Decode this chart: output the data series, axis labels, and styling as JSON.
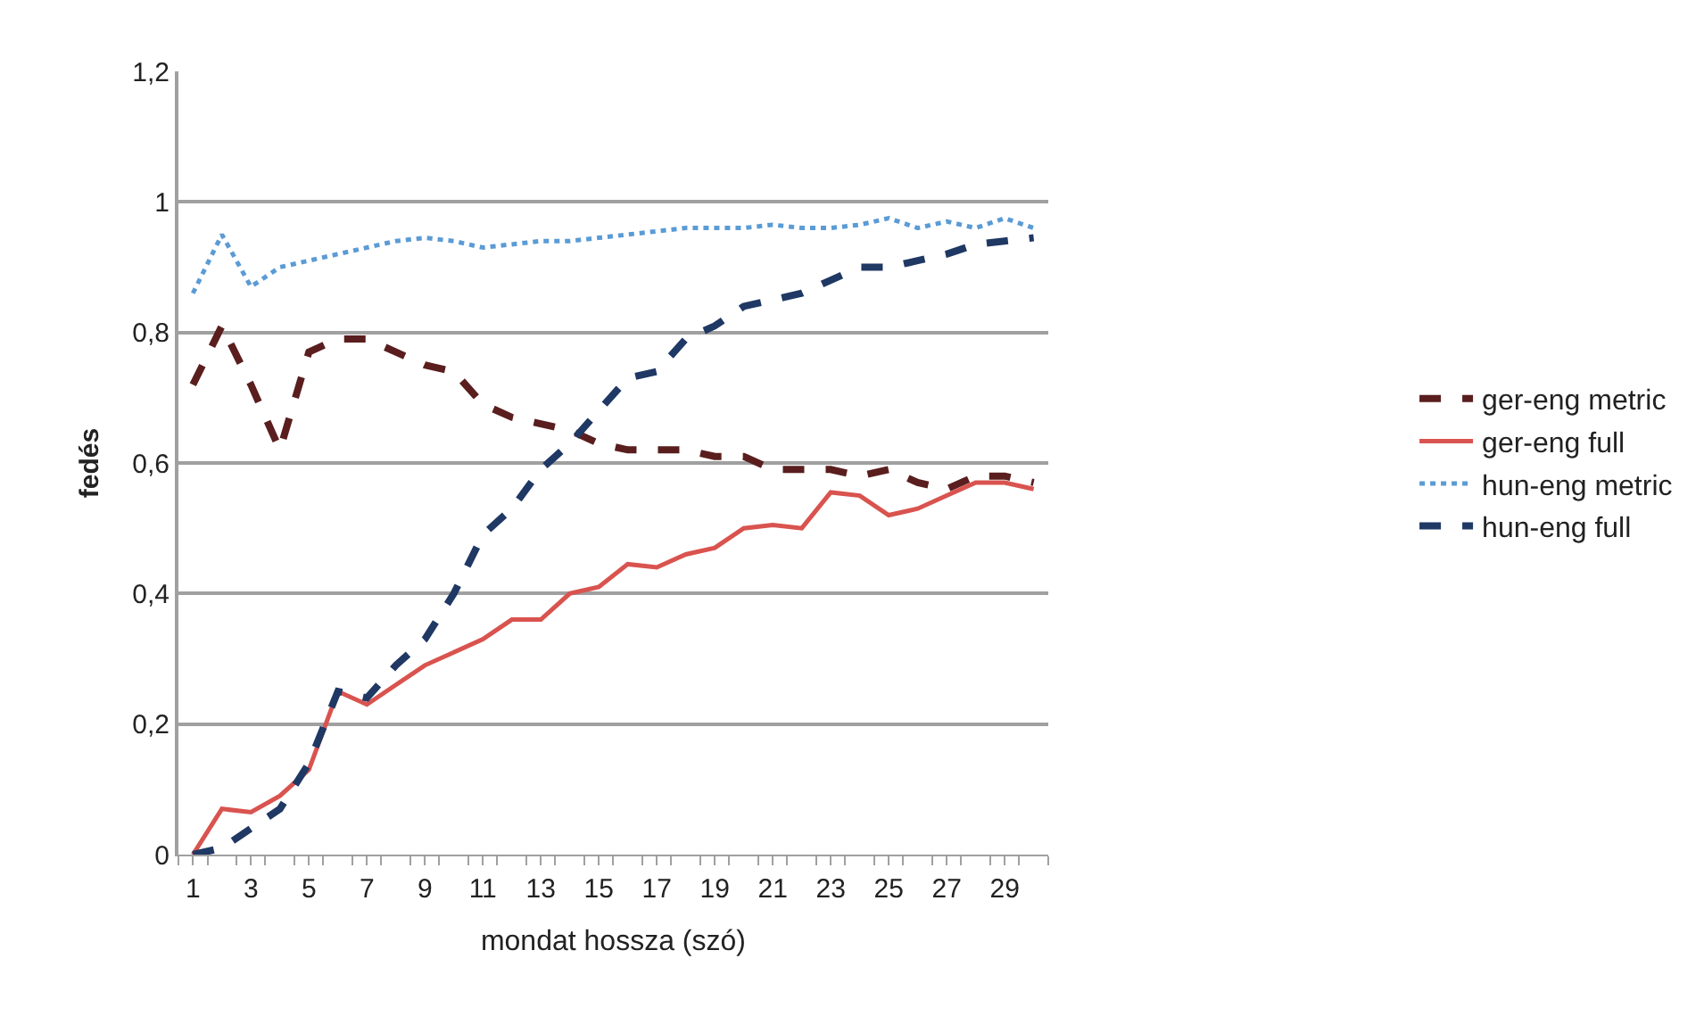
{
  "chart_data": {
    "type": "line",
    "xlabel": "mondat hossza (szó)",
    "ylabel": "fedés",
    "x": [
      1,
      2,
      3,
      4,
      5,
      6,
      7,
      8,
      9,
      10,
      11,
      12,
      13,
      14,
      15,
      16,
      17,
      18,
      19,
      20,
      21,
      22,
      23,
      24,
      25,
      26,
      27,
      28,
      29,
      30
    ],
    "series": [
      {
        "name": "ger-eng metric",
        "color": "#5a1e1e",
        "line_style": "dashed",
        "values": [
          0.72,
          0.81,
          0.72,
          0.62,
          0.77,
          0.79,
          0.79,
          0.77,
          0.75,
          0.74,
          0.69,
          0.67,
          0.66,
          0.65,
          0.63,
          0.62,
          0.62,
          0.62,
          0.61,
          0.61,
          0.59,
          0.59,
          0.59,
          0.58,
          0.59,
          0.57,
          0.56,
          0.58,
          0.58,
          0.57
        ]
      },
      {
        "name": "ger-eng full",
        "color": "#d9534f",
        "line_style": "solid",
        "values": [
          0.0,
          0.07,
          0.065,
          0.09,
          0.13,
          0.25,
          0.23,
          0.26,
          0.29,
          0.31,
          0.33,
          0.36,
          0.36,
          0.4,
          0.41,
          0.445,
          0.44,
          0.46,
          0.47,
          0.5,
          0.505,
          0.5,
          0.555,
          0.55,
          0.52,
          0.53,
          0.55,
          0.57,
          0.57,
          0.56
        ]
      },
      {
        "name": "hun-eng metric",
        "color": "#5b9bd5",
        "line_style": "dotted",
        "values": [
          0.86,
          0.95,
          0.87,
          0.9,
          0.91,
          0.92,
          0.93,
          0.94,
          0.945,
          0.94,
          0.93,
          0.935,
          0.94,
          0.94,
          0.945,
          0.95,
          0.955,
          0.96,
          0.96,
          0.96,
          0.965,
          0.96,
          0.96,
          0.965,
          0.975,
          0.96,
          0.97,
          0.96,
          0.975,
          0.96
        ]
      },
      {
        "name": "hun-eng full",
        "color": "#1f3864",
        "line_style": "dashed",
        "values": [
          0.0,
          0.01,
          0.04,
          0.07,
          0.14,
          0.25,
          0.24,
          0.29,
          0.33,
          0.4,
          0.49,
          0.53,
          0.59,
          0.63,
          0.68,
          0.73,
          0.74,
          0.79,
          0.81,
          0.84,
          0.85,
          0.86,
          0.88,
          0.9,
          0.9,
          0.91,
          0.92,
          0.935,
          0.94,
          0.945
        ]
      }
    ],
    "xlim": [
      0.5,
      30.5
    ],
    "xticks": [
      1,
      3,
      5,
      7,
      9,
      11,
      13,
      15,
      17,
      19,
      21,
      23,
      25,
      27,
      29
    ],
    "ylim": [
      0,
      1.2
    ],
    "yticks": [
      0,
      {
        "value": 0.2,
        "label": "0,2"
      },
      {
        "value": 0.4,
        "label": "0,4"
      },
      {
        "value": 0.6,
        "label": "0,6"
      },
      {
        "value": 0.8,
        "label": "0,8"
      },
      1,
      {
        "value": 1.2,
        "label": "1,2"
      }
    ],
    "grid": "y",
    "legend": "right",
    "marker": "none"
  }
}
